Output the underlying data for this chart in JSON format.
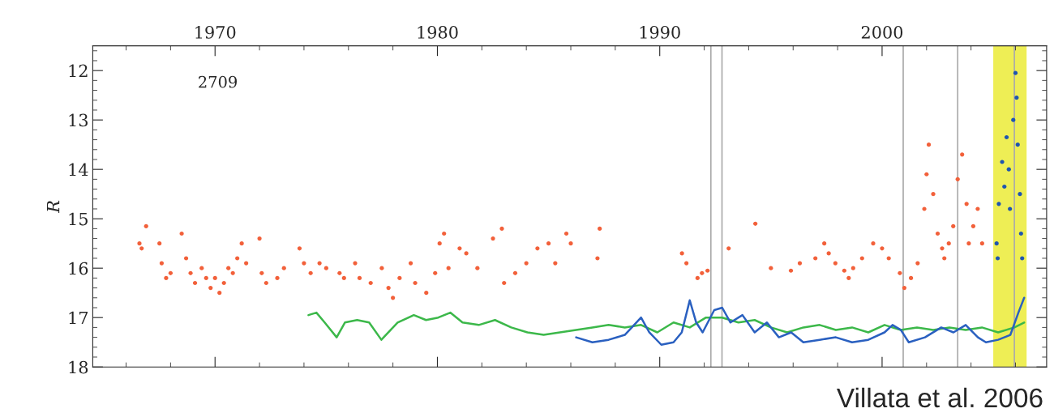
{
  "chart_data": {
    "type": "scatter",
    "ylabel": "R",
    "xlim": [
      1964.5,
      2007.4
    ],
    "xticks": [
      1970,
      1980,
      1990,
      2000
    ],
    "ylim": [
      18,
      11.5
    ],
    "yticks": [
      12,
      13,
      14,
      15,
      16,
      17,
      18
    ],
    "grid": false,
    "legend": false,
    "annotations": [
      "2709",
      "Villata et al. 2006"
    ],
    "ref_lines": [
      {
        "axis": "x",
        "value": 1992.3,
        "color": "#aaaaaa"
      },
      {
        "axis": "x",
        "value": 1992.8,
        "color": "#aaaaaa"
      },
      {
        "axis": "x",
        "value": 2000.95,
        "color": "#aaaaaa"
      },
      {
        "axis": "x",
        "value": 2003.4,
        "color": "#aaaaaa"
      },
      {
        "axis": "x",
        "value": 2005.95,
        "color": "#aaaaaa"
      }
    ],
    "bands": [
      {
        "axis": "x",
        "from": 2005.0,
        "to": 2006.5,
        "color": "#eeee55"
      }
    ],
    "series": [
      {
        "color": "#f2603a",
        "marker": "circle",
        "x": [
          1966.6,
          1966.7,
          1966.9,
          1967.5,
          1967.6,
          1967.8,
          1968.0,
          1968.5,
          1968.7,
          1968.9,
          1969.1,
          1969.4,
          1969.6,
          1969.8,
          1970.0,
          1970.2,
          1970.4,
          1970.6,
          1970.8,
          1971.0,
          1971.2,
          1971.4,
          1972.0,
          1972.1,
          1972.3,
          1972.8,
          1973.1,
          1973.8,
          1974.0,
          1974.3,
          1974.7,
          1975.0,
          1975.6,
          1975.8,
          1976.3,
          1976.5,
          1977.0,
          1977.5,
          1977.8,
          1978.0,
          1978.3,
          1978.8,
          1979.0,
          1979.5,
          1979.9,
          1980.1,
          1980.3,
          1980.5,
          1981.0,
          1981.3,
          1981.8,
          1982.5,
          1982.9,
          1983.0,
          1983.5,
          1984.0,
          1984.5,
          1985.0,
          1985.3,
          1985.8,
          1986.0,
          1987.2,
          1987.3,
          1991.0,
          1991.2,
          1991.7,
          1991.9,
          1992.15,
          1993.1,
          1994.3,
          1995.0,
          1995.9,
          1996.3,
          1997.0,
          1997.4,
          1997.6,
          1997.9,
          1998.3,
          1998.5,
          1998.7,
          1999.1,
          1999.6,
          2000.0,
          2000.3,
          2000.8,
          2001.0,
          2001.3,
          2001.6,
          2001.9,
          2002.0,
          2002.1,
          2002.3,
          2002.5,
          2002.7,
          2002.8,
          2003.0,
          2003.2,
          2003.4,
          2003.6,
          2003.8,
          2003.9,
          2004.1,
          2004.3,
          2004.5
        ],
        "values": [
          15.5,
          15.6,
          15.15,
          15.5,
          15.9,
          16.2,
          16.1,
          15.3,
          15.8,
          16.1,
          16.3,
          16.0,
          16.2,
          16.4,
          16.2,
          16.5,
          16.3,
          16.0,
          16.1,
          15.8,
          15.5,
          15.9,
          15.4,
          16.1,
          16.3,
          16.2,
          16.0,
          15.6,
          15.9,
          16.1,
          15.9,
          16.0,
          16.1,
          16.2,
          15.9,
          16.2,
          16.3,
          16.0,
          16.4,
          16.6,
          16.2,
          15.9,
          16.3,
          16.5,
          16.1,
          15.5,
          15.3,
          16.0,
          15.6,
          15.7,
          16.0,
          15.4,
          15.2,
          16.3,
          16.1,
          15.9,
          15.6,
          15.5,
          15.9,
          15.3,
          15.5,
          15.8,
          15.2,
          15.7,
          15.9,
          16.2,
          16.1,
          16.05,
          15.6,
          15.1,
          16.0,
          16.05,
          15.9,
          15.8,
          15.5,
          15.7,
          15.9,
          16.05,
          16.2,
          16.0,
          15.8,
          15.5,
          15.6,
          15.8,
          16.1,
          16.4,
          16.2,
          15.9,
          14.8,
          14.1,
          13.5,
          14.5,
          15.3,
          15.6,
          15.8,
          15.5,
          15.15,
          14.2,
          13.7,
          14.7,
          15.5,
          15.15,
          14.8,
          15.5
        ]
      },
      {
        "color": "#1f55b0",
        "marker": "circle",
        "x": [
          2005.15,
          2005.2,
          2005.25,
          2005.4,
          2005.5,
          2005.6,
          2005.7,
          2005.75,
          2005.9,
          2006.0,
          2006.05,
          2006.1,
          2006.2,
          2006.25,
          2006.3
        ],
        "values": [
          15.5,
          15.8,
          14.7,
          13.85,
          14.35,
          13.35,
          14.0,
          14.8,
          13.0,
          12.05,
          12.55,
          13.5,
          14.5,
          15.3,
          15.8
        ]
      },
      {
        "type": "line",
        "color": "#3cb84a",
        "x": [
          1974.2,
          1974.56,
          1974.93,
          1975.47,
          1975.84,
          1976.39,
          1976.93,
          1977.48,
          1978.21,
          1978.94,
          1979.49,
          1980.04,
          1980.58,
          1981.13,
          1981.86,
          1982.59,
          1983.32,
          1984.05,
          1984.78,
          1985.51,
          1986.24,
          1986.97,
          1987.7,
          1988.43,
          1989.16,
          1989.89,
          1990.62,
          1991.35,
          1992.08,
          1992.81,
          1993.54,
          1994.27,
          1995.0,
          1995.73,
          1996.46,
          1997.19,
          1997.92,
          1998.65,
          1999.38,
          2000.11,
          2000.84,
          2001.57,
          2002.3,
          2003.03,
          2003.76,
          2004.49,
          2005.22,
          2005.95,
          2006.39
        ],
        "values": [
          16.95,
          16.9,
          17.1,
          17.4,
          17.1,
          17.05,
          17.1,
          17.45,
          17.1,
          16.95,
          17.05,
          17.0,
          16.9,
          17.1,
          17.15,
          17.05,
          17.2,
          17.3,
          17.35,
          17.3,
          17.25,
          17.2,
          17.15,
          17.2,
          17.15,
          17.3,
          17.1,
          17.2,
          17.0,
          17.0,
          17.1,
          17.05,
          17.2,
          17.3,
          17.2,
          17.15,
          17.25,
          17.2,
          17.3,
          17.15,
          17.25,
          17.2,
          17.25,
          17.2,
          17.25,
          17.2,
          17.3,
          17.2,
          17.1
        ]
      },
      {
        "type": "line",
        "color": "#2a60c0",
        "x": [
          1986.24,
          1986.97,
          1987.7,
          1988.43,
          1989.16,
          1989.53,
          1990.07,
          1990.62,
          1990.99,
          1991.35,
          1991.64,
          1991.93,
          1992.45,
          1992.81,
          1993.18,
          1993.72,
          1994.27,
          1994.82,
          1995.36,
          1995.91,
          1996.46,
          1997.19,
          1997.92,
          1998.65,
          1999.38,
          2000.11,
          2000.47,
          2000.84,
          2001.2,
          2001.93,
          2002.66,
          2003.21,
          2003.76,
          2004.31,
          2004.67,
          2005.22,
          2005.77,
          2006.13,
          2006.39
        ],
        "values": [
          17.4,
          17.5,
          17.45,
          17.35,
          17.0,
          17.3,
          17.55,
          17.5,
          17.3,
          16.65,
          17.1,
          17.3,
          16.85,
          16.8,
          17.1,
          16.95,
          17.3,
          17.1,
          17.4,
          17.3,
          17.5,
          17.45,
          17.4,
          17.5,
          17.45,
          17.3,
          17.15,
          17.25,
          17.5,
          17.4,
          17.2,
          17.3,
          17.15,
          17.4,
          17.5,
          17.45,
          17.35,
          16.9,
          16.6
        ]
      }
    ]
  }
}
